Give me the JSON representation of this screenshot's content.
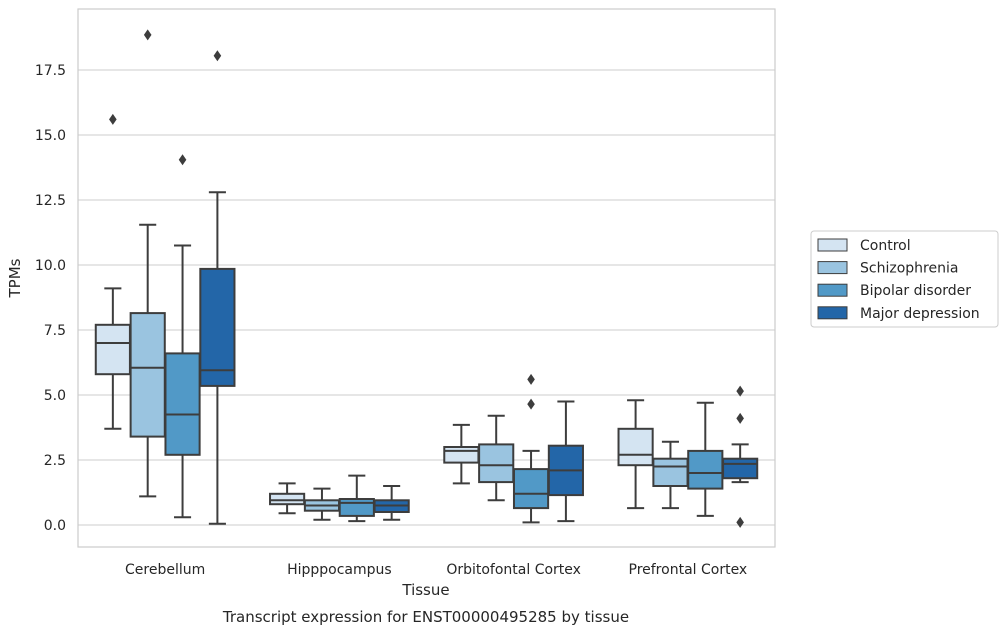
{
  "chart_data": {
    "type": "box",
    "title": "",
    "caption": "Transcript expression for ENST00000495285 by tissue",
    "xlabel": "Tissue",
    "ylabel": "TPMs",
    "ylim": [
      -0.8,
      19.8
    ],
    "yticks": [
      0.0,
      2.5,
      5.0,
      7.5,
      10.0,
      12.5,
      15.0,
      17.5
    ],
    "ytick_labels": [
      "0.0",
      "2.5",
      "5.0",
      "7.5",
      "10.0",
      "12.5",
      "15.0",
      "17.5"
    ],
    "grid": "horizontal",
    "legend_position": "right",
    "categories": [
      "Cerebellum",
      "Hipppocampus",
      "Orbitofontal Cortex",
      "Prefrontal Cortex"
    ],
    "series": [
      {
        "name": "Control",
        "color": "#d4e4f2",
        "boxes": [
          {
            "min": 3.7,
            "q1": 5.8,
            "median": 7.0,
            "q3": 7.7,
            "max": 9.1,
            "outliers": [
              15.6
            ]
          },
          {
            "min": 0.45,
            "q1": 0.8,
            "median": 0.95,
            "q3": 1.2,
            "max": 1.6,
            "outliers": []
          },
          {
            "min": 1.6,
            "q1": 2.4,
            "median": 2.85,
            "q3": 3.0,
            "max": 3.85,
            "outliers": []
          },
          {
            "min": 0.65,
            "q1": 2.3,
            "median": 2.7,
            "q3": 3.7,
            "max": 4.8,
            "outliers": []
          }
        ]
      },
      {
        "name": "Schizophrenia",
        "color": "#9ac4e0",
        "boxes": [
          {
            "min": 1.1,
            "q1": 3.4,
            "median": 6.05,
            "q3": 8.15,
            "max": 11.55,
            "outliers": [
              18.85
            ]
          },
          {
            "min": 0.2,
            "q1": 0.55,
            "median": 0.75,
            "q3": 0.95,
            "max": 1.4,
            "outliers": []
          },
          {
            "min": 0.95,
            "q1": 1.65,
            "median": 2.3,
            "q3": 3.1,
            "max": 4.2,
            "outliers": []
          },
          {
            "min": 0.65,
            "q1": 1.5,
            "median": 2.25,
            "q3": 2.55,
            "max": 3.2,
            "outliers": []
          }
        ]
      },
      {
        "name": "Bipolar disorder",
        "color": "#5199c7",
        "boxes": [
          {
            "min": 0.3,
            "q1": 2.7,
            "median": 4.25,
            "q3": 6.6,
            "max": 10.75,
            "outliers": [
              14.05
            ]
          },
          {
            "min": 0.15,
            "q1": 0.35,
            "median": 0.85,
            "q3": 1.0,
            "max": 1.9,
            "outliers": []
          },
          {
            "min": 0.1,
            "q1": 0.65,
            "median": 1.2,
            "q3": 2.15,
            "max": 2.85,
            "outliers": [
              4.65,
              5.6
            ]
          },
          {
            "min": 0.35,
            "q1": 1.4,
            "median": 2.0,
            "q3": 2.85,
            "max": 4.7,
            "outliers": []
          }
        ]
      },
      {
        "name": "Major depression",
        "color": "#2366a8",
        "boxes": [
          {
            "min": 0.05,
            "q1": 5.35,
            "median": 5.95,
            "q3": 9.85,
            "max": 12.8,
            "outliers": [
              18.05
            ]
          },
          {
            "min": 0.2,
            "q1": 0.5,
            "median": 0.75,
            "q3": 0.95,
            "max": 1.5,
            "outliers": []
          },
          {
            "min": 0.15,
            "q1": 1.15,
            "median": 2.1,
            "q3": 3.05,
            "max": 4.75,
            "outliers": []
          },
          {
            "min": 1.65,
            "q1": 1.8,
            "median": 2.35,
            "q3": 2.55,
            "max": 3.1,
            "outliers": [
              0.1,
              4.1,
              5.15
            ]
          }
        ]
      }
    ]
  }
}
